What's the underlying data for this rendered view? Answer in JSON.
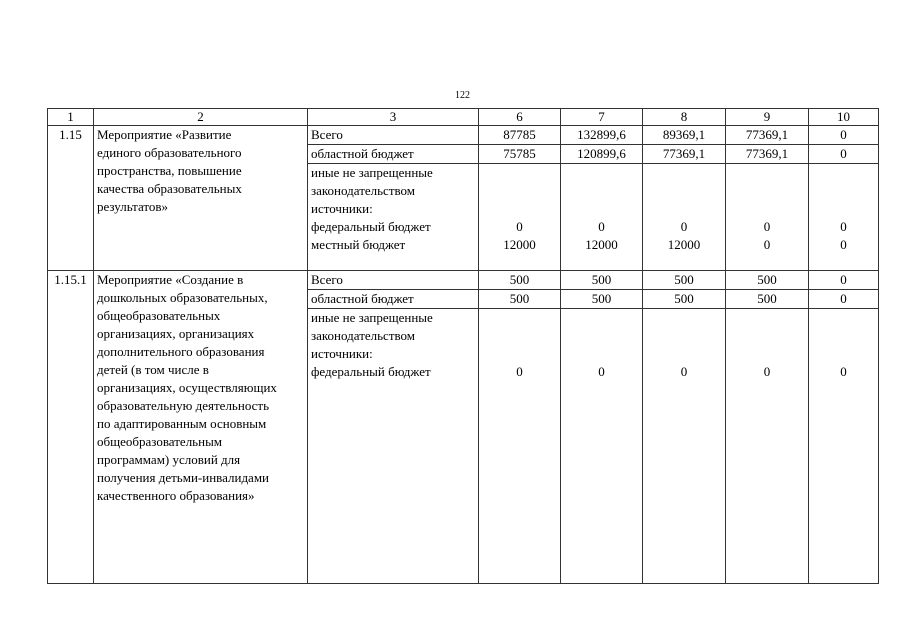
{
  "page_number": "122",
  "header": [
    "1",
    "2",
    "3",
    "6",
    "7",
    "8",
    "9",
    "10"
  ],
  "blocks": [
    {
      "code": "1.15",
      "title_lines": [
        "Мероприятие «Развитие",
        "единого образовательного",
        "пространства, повышение",
        "качества образовательных",
        "результатов»"
      ],
      "total": {
        "label": "Всего",
        "values": [
          "87785",
          "132899,6",
          "89369,1",
          "77369,1",
          "0"
        ]
      },
      "regional": {
        "label": "областной бюджет",
        "values": [
          "75785",
          "120899,6",
          "77369,1",
          "77369,1",
          "0"
        ]
      },
      "other_label_lines": [
        "иные не запрещенные",
        "законодательством",
        "источники:",
        "федеральный бюджет",
        "местный бюджет"
      ],
      "federal_values": [
        "0",
        "0",
        "0",
        "0",
        "0"
      ],
      "local_values": [
        "12000",
        "12000",
        "12000",
        "0",
        "0"
      ]
    },
    {
      "code": "1.15.1",
      "title_lines": [
        "Мероприятие «Создание в",
        "дошкольных образовательных,",
        "общеобразовательных",
        "организациях, организациях",
        "дополнительного образования",
        "детей (в том числе в",
        "организациях, осуществляющих",
        "образовательную деятельность",
        "по адаптированным основным",
        "общеобразовательным",
        "программам) условий для",
        "получения детьми-инвалидами",
        "качественного образования»"
      ],
      "total": {
        "label": "Всего",
        "values": [
          "500",
          "500",
          "500",
          "500",
          "0"
        ]
      },
      "regional": {
        "label": "областной бюджет",
        "values": [
          "500",
          "500",
          "500",
          "500",
          "0"
        ]
      },
      "other_label_lines": [
        "иные не запрещенные",
        "законодательством",
        "источники:",
        "федеральный бюджет"
      ],
      "federal_values": [
        "0",
        "0",
        "0",
        "0",
        "0"
      ]
    }
  ]
}
